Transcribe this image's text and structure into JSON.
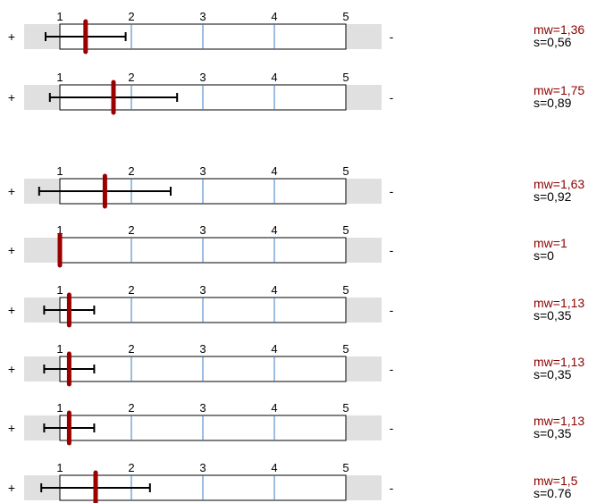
{
  "chart_data": {
    "type": "scale-profile",
    "scale": {
      "min": 1,
      "max": 5,
      "ticks": [
        "1",
        "2",
        "3",
        "4",
        "5"
      ]
    },
    "left_label": "+",
    "right_label": "-",
    "colors": {
      "mean_marker": "#9b0000",
      "mean_text": "#8b0000",
      "grid_line": "#3a7cc4",
      "side_bar": "#e0e0e0",
      "error_bar": "#000000"
    },
    "rows": [
      {
        "mean": 1.36,
        "sd": 0.56,
        "mean_label": "mw=1,36",
        "sd_label": "s=0,56"
      },
      {
        "mean": 1.75,
        "sd": 0.89,
        "mean_label": "mw=1,75",
        "sd_label": "s=0,89"
      },
      {
        "mean": 1.63,
        "sd": 0.92,
        "mean_label": "mw=1,63",
        "sd_label": "s=0,92"
      },
      {
        "mean": 1.0,
        "sd": 0,
        "mean_label": "mw=1",
        "sd_label": "s=0"
      },
      {
        "mean": 1.13,
        "sd": 0.35,
        "mean_label": "mw=1,13",
        "sd_label": "s=0,35"
      },
      {
        "mean": 1.13,
        "sd": 0.35,
        "mean_label": "mw=1,13",
        "sd_label": "s=0,35"
      },
      {
        "mean": 1.13,
        "sd": 0.35,
        "mean_label": "mw=1,13",
        "sd_label": "s=0,35"
      },
      {
        "mean": 1.5,
        "sd": 0.76,
        "mean_label": "mw=1,5",
        "sd_label": "s=0.76"
      }
    ]
  }
}
